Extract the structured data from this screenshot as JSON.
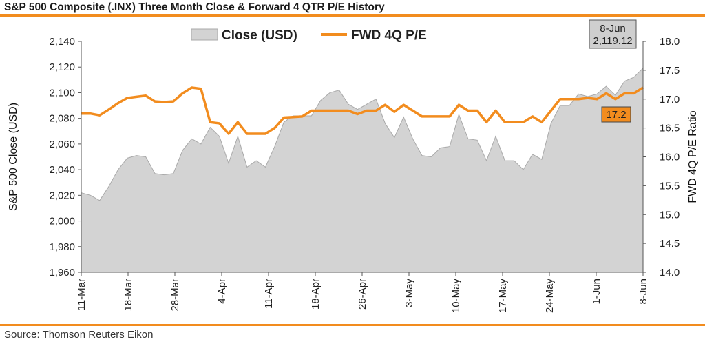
{
  "title": "S&P 500 Composite (.INX) Three Month Close & Forward 4 QTR P/E History",
  "source": "Source: Thomson Reuters Eikon",
  "colors": {
    "accent": "#f28c1e",
    "area_fill": "#d3d3d3",
    "area_stroke": "#a9a9a9",
    "pe_line": "#f28c1e"
  },
  "chart_data": {
    "type": "area",
    "title": "S&P 500 Composite (.INX) Three Month Close & Forward 4 QTR P/E History",
    "xlabel": "",
    "ylabel": "S&P 500 Close (USD)",
    "y2label": "FWD 4Q P/E Ratio",
    "ylim": [
      1960,
      2140
    ],
    "y2lim": [
      14.0,
      18.0
    ],
    "y_ticks": [
      "2,140",
      "2,120",
      "2,100",
      "2,080",
      "2,060",
      "2,040",
      "2,020",
      "2,000",
      "1,980",
      "1,960"
    ],
    "y2_ticks": [
      "18.0",
      "17.5",
      "17.0",
      "16.5",
      "16.0",
      "15.5",
      "15.0",
      "14.5",
      "14.0"
    ],
    "x_tick_labels": [
      "11-Mar",
      "18-Mar",
      "28-Mar",
      "4-Apr",
      "11-Apr",
      "18-Apr",
      "26-Apr",
      "3-May",
      "10-May",
      "17-May",
      "24-May",
      "1-Jun",
      "8-Jun"
    ],
    "legend": "top-center",
    "grid": false,
    "series": [
      {
        "name": "Close (USD)",
        "type": "area",
        "axis": "left",
        "values": [
          2022,
          2020,
          2016,
          2027,
          2040,
          2049,
          2051,
          2050,
          2037,
          2036,
          2037,
          2055,
          2064,
          2060,
          2073,
          2066,
          2045,
          2066,
          2042,
          2047,
          2042,
          2058,
          2077,
          2082,
          2082,
          2082,
          2094,
          2100,
          2102,
          2091,
          2087,
          2091,
          2095,
          2076,
          2065,
          2081,
          2064,
          2051,
          2050,
          2057,
          2058,
          2083,
          2064,
          2063,
          2047,
          2066,
          2047,
          2047,
          2040,
          2052,
          2048,
          2076,
          2090,
          2090,
          2099,
          2097,
          2099,
          2105,
          2098,
          2109,
          2112,
          2119.12
        ]
      },
      {
        "name": "FWD 4Q P/E",
        "type": "line",
        "axis": "right",
        "values": [
          16.75,
          16.75,
          16.72,
          16.82,
          16.93,
          17.02,
          17.04,
          17.06,
          16.96,
          16.95,
          16.96,
          17.1,
          17.2,
          17.18,
          16.6,
          16.58,
          16.4,
          16.6,
          16.4,
          16.4,
          16.4,
          16.5,
          16.68,
          16.69,
          16.7,
          16.8,
          16.8,
          16.8,
          16.8,
          16.8,
          16.74,
          16.8,
          16.8,
          16.9,
          16.78,
          16.9,
          16.8,
          16.7,
          16.7,
          16.7,
          16.7,
          16.9,
          16.8,
          16.8,
          16.6,
          16.8,
          16.6,
          16.6,
          16.6,
          16.7,
          16.6,
          16.8,
          17.0,
          17.0,
          17.0,
          17.02,
          17.0,
          17.1,
          17.0,
          17.1,
          17.1,
          17.2
        ]
      }
    ],
    "annotations": [
      {
        "text_line1": "8-Jun",
        "text_line2": "2,119.12",
        "target": "Close (USD)",
        "point": "last"
      },
      {
        "text": "17.2",
        "target": "FWD 4Q P/E",
        "point": "last"
      }
    ]
  }
}
